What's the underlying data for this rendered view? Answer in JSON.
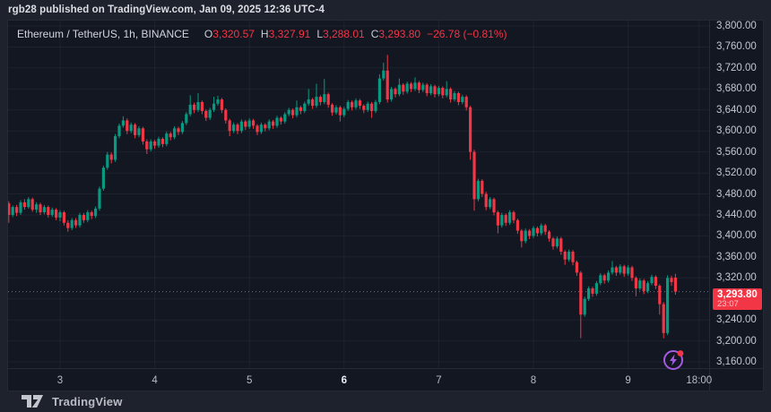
{
  "attribution": "rgb28 published on TradingView.com, Jan 09, 2025 12:36 UTC-4",
  "legend": {
    "symbol": "Ethereum / TetherUS, 1h, BINANCE",
    "o_label": "O",
    "o": "3,320.57",
    "h_label": "H",
    "h": "3,327.91",
    "l_label": "L",
    "l": "3,288.01",
    "c_label": "C",
    "c": "3,293.80",
    "change": "−26.78 (−0.81%)"
  },
  "price_badge": {
    "price": "3,293.80",
    "countdown": "23:07"
  },
  "footer": {
    "brand": "TradingView"
  },
  "colors": {
    "up": "#089981",
    "down": "#f23645",
    "badge_bg": "#f23645",
    "chart_bg": "#131722",
    "outer_bg": "#1e222d",
    "grid": "rgba(150,160,180,0.08)",
    "flash_purple": "#a45ae1",
    "notification_red": "#f23645"
  },
  "chart_data": {
    "type": "candlestick",
    "title": "Ethereum / TetherUS, 1h, BINANCE",
    "interval": "1h",
    "last_price": 3293.8,
    "price_line": 3293.8,
    "ylim": [
      3140,
      3810
    ],
    "grid": true,
    "y_ticks": [
      {
        "value": 3800,
        "label": "3,800.00"
      },
      {
        "value": 3760,
        "label": "3,760.00"
      },
      {
        "value": 3720,
        "label": "3,720.00"
      },
      {
        "value": 3680,
        "label": "3,680.00"
      },
      {
        "value": 3640,
        "label": "3,640.00"
      },
      {
        "value": 3600,
        "label": "3,600.00"
      },
      {
        "value": 3560,
        "label": "3,560.00"
      },
      {
        "value": 3520,
        "label": "3,520.00"
      },
      {
        "value": 3480,
        "label": "3,480.00"
      },
      {
        "value": 3440,
        "label": "3,440.00"
      },
      {
        "value": 3400,
        "label": "3,400.00"
      },
      {
        "value": 3360,
        "label": "3,360.00"
      },
      {
        "value": 3320,
        "label": "3,320.00"
      },
      {
        "value": 3280,
        "label": "3,280.00"
      },
      {
        "value": 3240,
        "label": "3,240.00"
      },
      {
        "value": 3200,
        "label": "3,200.00"
      },
      {
        "value": 3160,
        "label": "3,160.00"
      }
    ],
    "x_ticks": [
      {
        "label": "3",
        "i": 15
      },
      {
        "label": "4",
        "i": 39
      },
      {
        "label": "5",
        "i": 63
      },
      {
        "label": "6",
        "i": 87,
        "emph": true
      },
      {
        "label": "7",
        "i": 111
      },
      {
        "label": "8",
        "i": 135
      },
      {
        "label": "9",
        "i": 159
      },
      {
        "label": "18:00",
        "i": 177
      }
    ],
    "ohlc": [
      [
        3505,
        3512,
        3488,
        3492
      ],
      [
        3492,
        3496,
        3458,
        3462
      ],
      [
        3462,
        3466,
        3425,
        3440
      ],
      [
        3440,
        3458,
        3436,
        3455
      ],
      [
        3455,
        3459,
        3438,
        3444
      ],
      [
        3444,
        3468,
        3440,
        3464
      ],
      [
        3464,
        3470,
        3450,
        3455
      ],
      [
        3455,
        3474,
        3452,
        3470
      ],
      [
        3470,
        3473,
        3446,
        3450
      ],
      [
        3450,
        3464,
        3444,
        3460
      ],
      [
        3460,
        3463,
        3440,
        3445
      ],
      [
        3445,
        3459,
        3441,
        3455
      ],
      [
        3455,
        3458,
        3435,
        3440
      ],
      [
        3440,
        3454,
        3436,
        3450
      ],
      [
        3450,
        3453,
        3430,
        3435
      ],
      [
        3435,
        3449,
        3428,
        3445
      ],
      [
        3445,
        3448,
        3420,
        3425
      ],
      [
        3425,
        3430,
        3408,
        3415
      ],
      [
        3415,
        3434,
        3411,
        3430
      ],
      [
        3430,
        3434,
        3415,
        3420
      ],
      [
        3420,
        3444,
        3416,
        3440
      ],
      [
        3440,
        3444,
        3425,
        3430
      ],
      [
        3430,
        3449,
        3426,
        3445
      ],
      [
        3445,
        3448,
        3432,
        3438
      ],
      [
        3438,
        3456,
        3434,
        3452
      ],
      [
        3452,
        3494,
        3448,
        3490
      ],
      [
        3490,
        3534,
        3486,
        3530
      ],
      [
        3530,
        3560,
        3526,
        3555
      ],
      [
        3555,
        3559,
        3538,
        3545
      ],
      [
        3545,
        3594,
        3541,
        3590
      ],
      [
        3590,
        3614,
        3586,
        3610
      ],
      [
        3610,
        3628,
        3606,
        3620
      ],
      [
        3620,
        3624,
        3594,
        3600
      ],
      [
        3600,
        3616,
        3596,
        3612
      ],
      [
        3612,
        3615,
        3586,
        3592
      ],
      [
        3592,
        3609,
        3588,
        3605
      ],
      [
        3605,
        3608,
        3574,
        3580
      ],
      [
        3580,
        3584,
        3556,
        3565
      ],
      [
        3565,
        3584,
        3561,
        3580
      ],
      [
        3580,
        3583,
        3566,
        3572
      ],
      [
        3572,
        3589,
        3568,
        3585
      ],
      [
        3585,
        3588,
        3569,
        3575
      ],
      [
        3575,
        3599,
        3571,
        3595
      ],
      [
        3595,
        3598,
        3582,
        3588
      ],
      [
        3588,
        3609,
        3584,
        3605
      ],
      [
        3605,
        3608,
        3592,
        3598
      ],
      [
        3598,
        3619,
        3594,
        3615
      ],
      [
        3615,
        3636,
        3611,
        3632
      ],
      [
        3632,
        3668,
        3628,
        3650
      ],
      [
        3650,
        3654,
        3634,
        3640
      ],
      [
        3640,
        3672,
        3636,
        3655
      ],
      [
        3655,
        3658,
        3632,
        3638
      ],
      [
        3638,
        3641,
        3619,
        3625
      ],
      [
        3625,
        3644,
        3621,
        3640
      ],
      [
        3640,
        3665,
        3636,
        3652
      ],
      [
        3652,
        3667,
        3648,
        3660
      ],
      [
        3660,
        3663,
        3634,
        3640
      ],
      [
        3640,
        3643,
        3614,
        3620
      ],
      [
        3620,
        3623,
        3590,
        3600
      ],
      [
        3600,
        3616,
        3596,
        3612
      ],
      [
        3612,
        3615,
        3594,
        3600
      ],
      [
        3600,
        3622,
        3596,
        3618
      ],
      [
        3618,
        3621,
        3602,
        3608
      ],
      [
        3608,
        3624,
        3604,
        3620
      ],
      [
        3620,
        3623,
        3604,
        3610
      ],
      [
        3610,
        3613,
        3592,
        3598
      ],
      [
        3598,
        3616,
        3594,
        3612
      ],
      [
        3612,
        3615,
        3599,
        3605
      ],
      [
        3605,
        3622,
        3601,
        3618
      ],
      [
        3618,
        3621,
        3604,
        3610
      ],
      [
        3610,
        3629,
        3606,
        3625
      ],
      [
        3625,
        3628,
        3612,
        3618
      ],
      [
        3618,
        3636,
        3614,
        3632
      ],
      [
        3632,
        3644,
        3628,
        3640
      ],
      [
        3640,
        3643,
        3624,
        3630
      ],
      [
        3630,
        3658,
        3626,
        3645
      ],
      [
        3645,
        3648,
        3632,
        3638
      ],
      [
        3638,
        3656,
        3634,
        3652
      ],
      [
        3652,
        3680,
        3648,
        3660
      ],
      [
        3660,
        3663,
        3642,
        3648
      ],
      [
        3648,
        3690,
        3644,
        3665
      ],
      [
        3665,
        3668,
        3649,
        3655
      ],
      [
        3655,
        3699,
        3651,
        3670
      ],
      [
        3670,
        3673,
        3644,
        3650
      ],
      [
        3650,
        3653,
        3629,
        3635
      ],
      [
        3635,
        3649,
        3631,
        3645
      ],
      [
        3645,
        3648,
        3618,
        3630
      ],
      [
        3630,
        3646,
        3626,
        3642
      ],
      [
        3642,
        3659,
        3638,
        3655
      ],
      [
        3655,
        3658,
        3639,
        3645
      ],
      [
        3645,
        3662,
        3641,
        3658
      ],
      [
        3658,
        3661,
        3642,
        3648
      ],
      [
        3648,
        3651,
        3634,
        3640
      ],
      [
        3640,
        3656,
        3636,
        3652
      ],
      [
        3652,
        3655,
        3625,
        3638
      ],
      [
        3638,
        3659,
        3634,
        3655
      ],
      [
        3655,
        3708,
        3651,
        3700
      ],
      [
        3700,
        3730,
        3696,
        3715
      ],
      [
        3715,
        3745,
        3654,
        3660
      ],
      [
        3660,
        3684,
        3656,
        3680
      ],
      [
        3680,
        3683,
        3664,
        3670
      ],
      [
        3670,
        3700,
        3666,
        3688
      ],
      [
        3688,
        3691,
        3669,
        3675
      ],
      [
        3675,
        3694,
        3671,
        3690
      ],
      [
        3690,
        3693,
        3674,
        3680
      ],
      [
        3680,
        3702,
        3676,
        3692
      ],
      [
        3692,
        3695,
        3672,
        3678
      ],
      [
        3678,
        3692,
        3674,
        3688
      ],
      [
        3688,
        3691,
        3666,
        3672
      ],
      [
        3672,
        3689,
        3668,
        3685
      ],
      [
        3685,
        3688,
        3664,
        3670
      ],
      [
        3670,
        3686,
        3666,
        3682
      ],
      [
        3682,
        3685,
        3662,
        3668
      ],
      [
        3668,
        3695,
        3664,
        3680
      ],
      [
        3680,
        3683,
        3654,
        3660
      ],
      [
        3660,
        3676,
        3656,
        3672
      ],
      [
        3672,
        3675,
        3649,
        3655
      ],
      [
        3655,
        3669,
        3651,
        3665
      ],
      [
        3665,
        3668,
        3639,
        3645
      ],
      [
        3645,
        3648,
        3545,
        3560
      ],
      [
        3560,
        3564,
        3448,
        3470
      ],
      [
        3470,
        3509,
        3466,
        3505
      ],
      [
        3505,
        3508,
        3474,
        3480
      ],
      [
        3480,
        3484,
        3449,
        3455
      ],
      [
        3455,
        3474,
        3451,
        3470
      ],
      [
        3470,
        3473,
        3439,
        3445
      ],
      [
        3445,
        3448,
        3405,
        3420
      ],
      [
        3420,
        3444,
        3416,
        3440
      ],
      [
        3440,
        3443,
        3419,
        3425
      ],
      [
        3425,
        3449,
        3421,
        3445
      ],
      [
        3445,
        3448,
        3424,
        3430
      ],
      [
        3430,
        3433,
        3404,
        3410
      ],
      [
        3410,
        3413,
        3378,
        3390
      ],
      [
        3390,
        3414,
        3386,
        3410
      ],
      [
        3410,
        3413,
        3394,
        3400
      ],
      [
        3400,
        3419,
        3396,
        3415
      ],
      [
        3415,
        3418,
        3399,
        3405
      ],
      [
        3405,
        3424,
        3401,
        3420
      ],
      [
        3420,
        3423,
        3402,
        3408
      ],
      [
        3408,
        3411,
        3389,
        3395
      ],
      [
        3395,
        3398,
        3374,
        3380
      ],
      [
        3380,
        3399,
        3376,
        3395
      ],
      [
        3395,
        3398,
        3364,
        3370
      ],
      [
        3370,
        3373,
        3345,
        3355
      ],
      [
        3355,
        3374,
        3351,
        3370
      ],
      [
        3370,
        3373,
        3344,
        3350
      ],
      [
        3350,
        3353,
        3324,
        3330
      ],
      [
        3330,
        3333,
        3205,
        3250
      ],
      [
        3250,
        3284,
        3246,
        3280
      ],
      [
        3280,
        3304,
        3276,
        3300
      ],
      [
        3300,
        3303,
        3284,
        3290
      ],
      [
        3290,
        3314,
        3286,
        3310
      ],
      [
        3310,
        3329,
        3306,
        3325
      ],
      [
        3325,
        3328,
        3309,
        3315
      ],
      [
        3315,
        3334,
        3311,
        3330
      ],
      [
        3330,
        3352,
        3326,
        3340
      ],
      [
        3340,
        3343,
        3324,
        3330
      ],
      [
        3330,
        3346,
        3326,
        3342
      ],
      [
        3342,
        3345,
        3322,
        3328
      ],
      [
        3328,
        3344,
        3324,
        3340
      ],
      [
        3340,
        3343,
        3314,
        3320
      ],
      [
        3320,
        3323,
        3285,
        3300
      ],
      [
        3300,
        3319,
        3296,
        3315
      ],
      [
        3315,
        3318,
        3289,
        3295
      ],
      [
        3295,
        3314,
        3291,
        3310
      ],
      [
        3310,
        3326,
        3306,
        3322
      ],
      [
        3322,
        3325,
        3299,
        3305
      ],
      [
        3305,
        3308,
        3250,
        3270
      ],
      [
        3270,
        3274,
        3205,
        3215
      ],
      [
        3215,
        3325,
        3211,
        3320
      ],
      [
        3320,
        3324,
        3305,
        3312
      ],
      [
        3320.57,
        3327.91,
        3288.01,
        3293.8
      ]
    ]
  }
}
